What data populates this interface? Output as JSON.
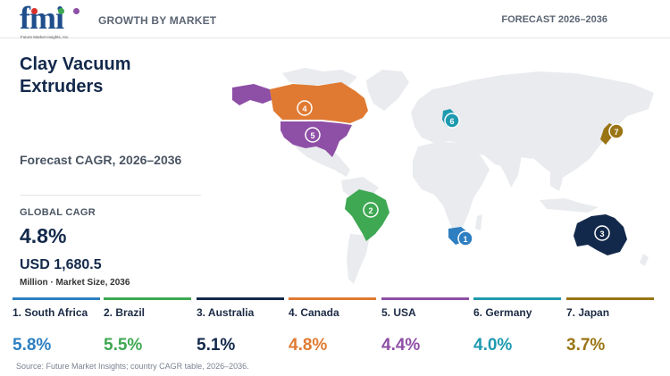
{
  "header": {
    "logo_text": "fmi",
    "logo_tagline": "Future Market Insights, Inc.",
    "section": "GROWTH BY MARKET",
    "forecast_label": "FORECAST 2026–2036"
  },
  "title": "Clay Vacuum Extruders",
  "subtitle": "Forecast CAGR, 2026–2036",
  "global": {
    "cagr_label": "GLOBAL CAGR",
    "cagr_value": "4.8%",
    "market_size": "USD 1,680.5",
    "market_size_label": "Million · Market Size, 2036"
  },
  "countries": [
    {
      "rank": "1",
      "label": "1. South Africa",
      "cagr": "5.8%",
      "color": "#2e7fc1"
    },
    {
      "rank": "2",
      "label": "2. Brazil",
      "cagr": "5.5%",
      "color": "#3ea852"
    },
    {
      "rank": "3",
      "label": "3. Australia",
      "cagr": "5.1%",
      "color": "#13294b"
    },
    {
      "rank": "4",
      "label": "4. Canada",
      "cagr": "4.8%",
      "color": "#e07a32"
    },
    {
      "rank": "5",
      "label": "5. USA",
      "cagr": "4.4%",
      "color": "#8e4fa6"
    },
    {
      "rank": "6",
      "label": "6. Germany",
      "cagr": "4.0%",
      "color": "#1e9ab0"
    },
    {
      "rank": "7",
      "label": "7. Japan",
      "cagr": "3.7%",
      "color": "#9a7515"
    }
  ],
  "source": "Source: Future Market Insights; country CAGR table, 2026–2036.",
  "colors": {
    "base_land": "#e9ebee",
    "brand": "#1f4e8c"
  }
}
